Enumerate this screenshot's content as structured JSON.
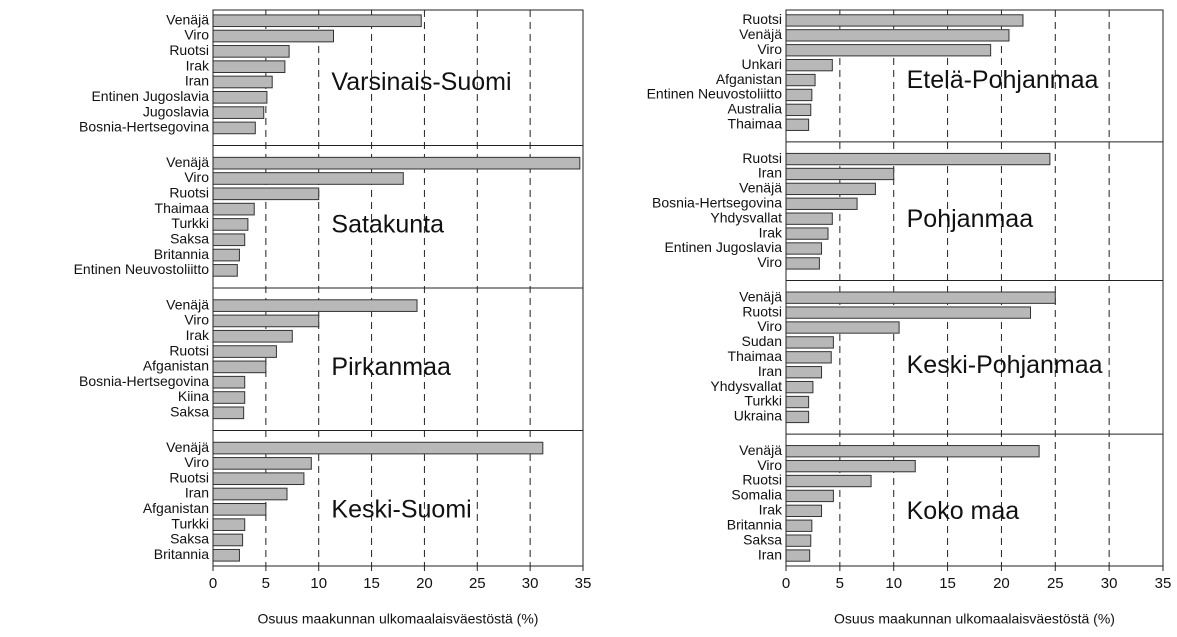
{
  "chart_data": [
    {
      "type": "bar",
      "orientation": "horizontal",
      "xlabel": "Osuus maakunnan ulkomaalaisväestöstä (%)",
      "xlim": [
        0,
        35
      ],
      "xticks": [
        0,
        5,
        10,
        15,
        20,
        25,
        30,
        35
      ],
      "grid": true,
      "color": "#b8b8b8",
      "groups": [
        {
          "label": "Varsinais-Suomi",
          "categories": [
            "Venäjä",
            "Viro",
            "Ruotsi",
            "Irak",
            "Iran",
            "Entinen Jugoslavia",
            "Jugoslavia",
            "Bosnia-Hertsegovina"
          ],
          "values": [
            19.7,
            11.4,
            7.2,
            6.8,
            5.6,
            5.1,
            4.8,
            4.0
          ]
        },
        {
          "label": "Satakunta",
          "categories": [
            "Venäjä",
            "Viro",
            "Ruotsi",
            "Thaimaa",
            "Turkki",
            "Saksa",
            "Britannia",
            "Entinen Neuvostoliitto"
          ],
          "values": [
            34.7,
            18.0,
            10.0,
            3.9,
            3.3,
            3.0,
            2.5,
            2.3
          ]
        },
        {
          "label": "Pirkanmaa",
          "categories": [
            "Venäjä",
            "Viro",
            "Irak",
            "Ruotsi",
            "Afganistan",
            "Bosnia-Hertsegovina",
            "Kiina",
            "Saksa"
          ],
          "values": [
            19.3,
            10.0,
            7.5,
            6.0,
            5.0,
            3.0,
            3.0,
            2.9
          ]
        },
        {
          "label": "Keski-Suomi",
          "categories": [
            "Venäjä",
            "Viro",
            "Ruotsi",
            "Iran",
            "Afganistan",
            "Turkki",
            "Saksa",
            "Britannia"
          ],
          "values": [
            31.2,
            9.3,
            8.6,
            7.0,
            5.0,
            3.0,
            2.8,
            2.5
          ]
        }
      ]
    },
    {
      "type": "bar",
      "orientation": "horizontal",
      "xlabel": "Osuus maakunnan ulkomaalaisväestöstä (%)",
      "xlim": [
        0,
        35
      ],
      "xticks": [
        0,
        5,
        10,
        15,
        20,
        25,
        30,
        35
      ],
      "grid": true,
      "color": "#b8b8b8",
      "groups": [
        {
          "label": "Etelä-Pohjanmaa",
          "categories": [
            "Ruotsi",
            "Venäjä",
            "Viro",
            "Unkari",
            "Afganistan",
            "Entinen Neuvostoliitto",
            "Australia",
            "Thaimaa"
          ],
          "values": [
            22.0,
            20.7,
            19.0,
            4.3,
            2.7,
            2.4,
            2.3,
            2.1
          ]
        },
        {
          "label": "Pohjanmaa",
          "categories": [
            "Ruotsi",
            "Iran",
            "Venäjä",
            "Bosnia-Hertsegovina",
            "Yhdysvallat",
            "Irak",
            "Entinen Jugoslavia",
            "Viro"
          ],
          "values": [
            24.5,
            10.0,
            8.3,
            6.6,
            4.3,
            3.9,
            3.3,
            3.1
          ]
        },
        {
          "label": "Keski-Pohjanmaa",
          "categories": [
            "Venäjä",
            "Ruotsi",
            "Viro",
            "Sudan",
            "Thaimaa",
            "Iran",
            "Yhdysvallat",
            "Turkki",
            "Ukraina"
          ],
          "values": [
            25.0,
            22.7,
            10.5,
            4.4,
            4.2,
            3.3,
            2.5,
            2.1,
            2.1
          ]
        },
        {
          "label": "Koko maa",
          "categories": [
            "Venäjä",
            "Viro",
            "Ruotsi",
            "Somalia",
            "Irak",
            "Britannia",
            "Saksa",
            "Iran"
          ],
          "values": [
            23.5,
            12.0,
            7.9,
            4.4,
            3.3,
            2.4,
            2.3,
            2.2
          ]
        }
      ]
    }
  ]
}
